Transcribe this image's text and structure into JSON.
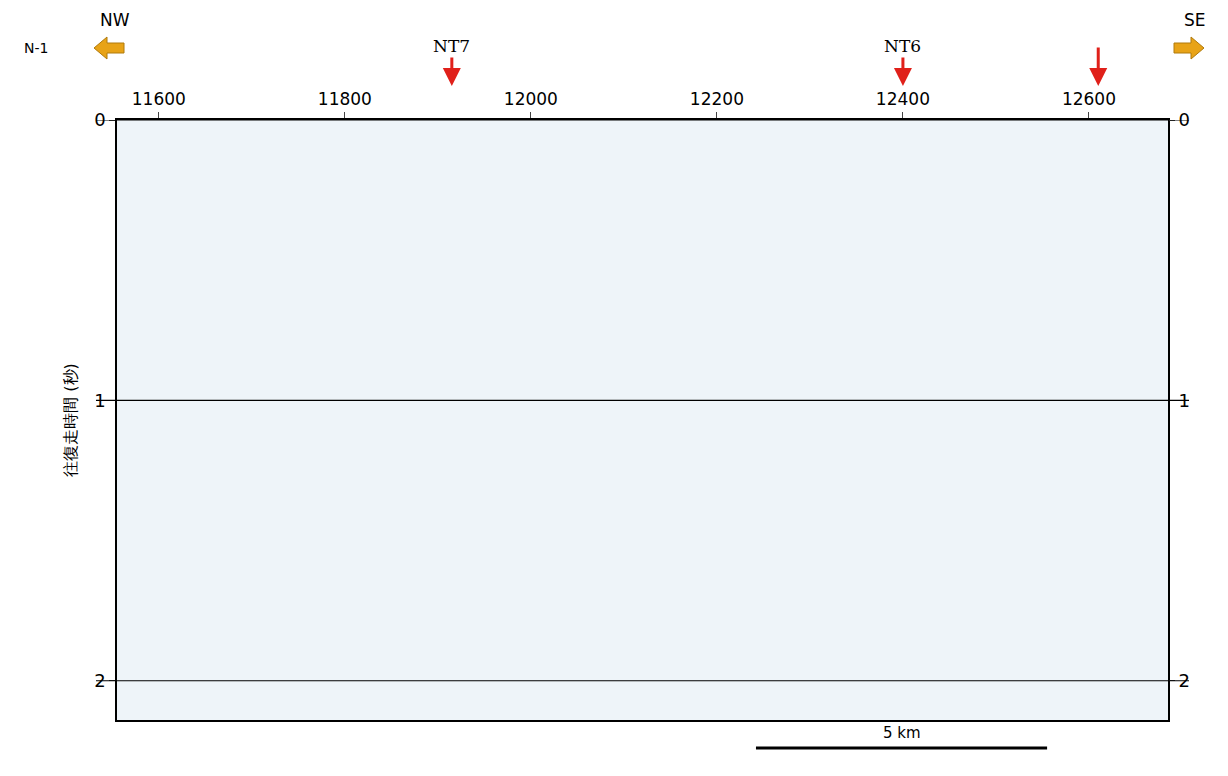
{
  "chart_data": {
    "type": "image",
    "ylabel": "往復走時間 (秒)",
    "profile": "N-1",
    "directions": {
      "left": "NW",
      "right": "SE"
    },
    "xlim": [
      11555,
      12685
    ],
    "xticks": [
      11600,
      11800,
      12000,
      12200,
      12400,
      12600
    ],
    "ylim": [
      0,
      2.14
    ],
    "yticks": [
      0,
      1,
      2
    ],
    "y2lim": [
      0,
      2.14
    ],
    "y2ticks": [
      0,
      1,
      2
    ],
    "annotations": [
      {
        "x": 11915,
        "text": "NT7"
      },
      {
        "x": 12400,
        "text": "NT6"
      },
      {
        "x": 12610
      }
    ],
    "scale_bar": {
      "label": "5 km",
      "x": [
        12242,
        12555
      ]
    },
    "grid": true
  }
}
